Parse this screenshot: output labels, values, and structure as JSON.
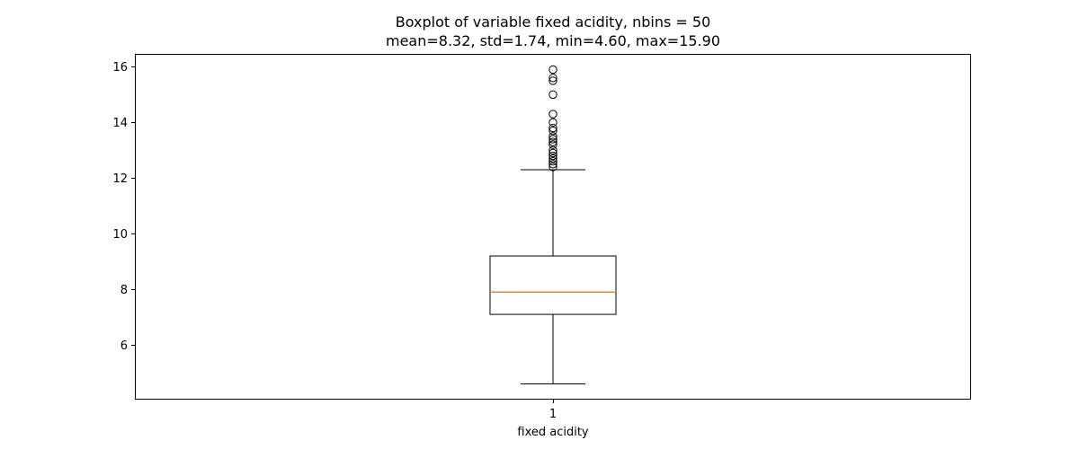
{
  "chart_data": {
    "type": "boxplot",
    "title": "Boxplot of variable fixed acidity, nbins = 50",
    "subtitle": "mean=8.32, std=1.74, min=4.60, max=15.90",
    "xlabel": "fixed acidity",
    "ylabel": "",
    "categories": [
      "1"
    ],
    "yticks": [
      6,
      8,
      10,
      12,
      14,
      16
    ],
    "ylim": [
      4.035,
      16.465
    ],
    "grid": false,
    "box": {
      "whisker_low": 4.6,
      "q1": 7.1,
      "median": 7.9,
      "q3": 9.2,
      "whisker_high": 12.3
    },
    "outliers": [
      12.4,
      12.5,
      12.6,
      12.7,
      12.8,
      12.9,
      13.0,
      13.2,
      13.3,
      13.4,
      13.5,
      13.7,
      13.8,
      14.0,
      14.3,
      15.0,
      15.5,
      15.6,
      15.9
    ],
    "colors": {
      "median": "#ff7f0e",
      "box": "#000000",
      "outlier_edge": "#000000"
    }
  }
}
